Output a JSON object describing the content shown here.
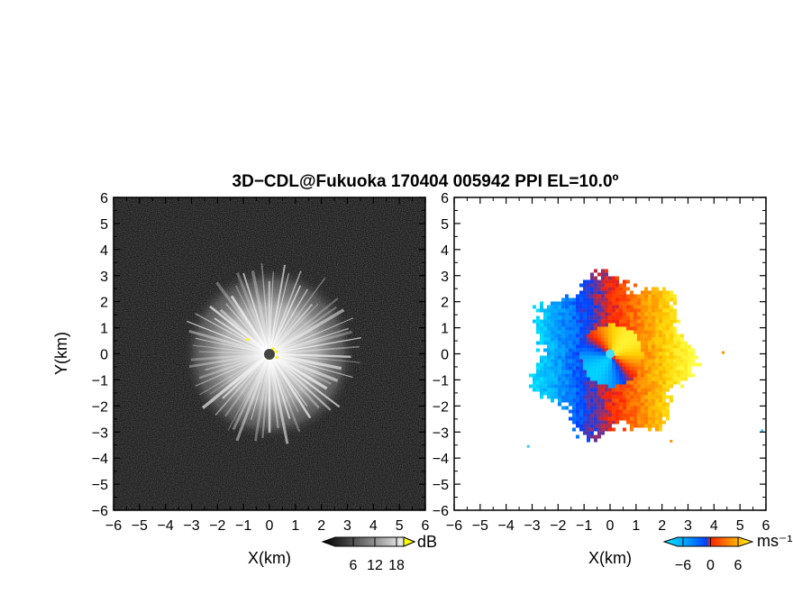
{
  "chart_data": [
    {
      "type": "heatmap",
      "panel": "reflectivity",
      "title": "3D−CDL@Fukuoka 170404 005942 PPI EL=10.0º",
      "xlabel": "X(km)",
      "ylabel": "Y(km)",
      "xlim": [
        -6,
        6
      ],
      "ylim": [
        -6,
        6
      ],
      "x_ticks": [
        "−6",
        "−5",
        "−4",
        "−3",
        "−2",
        "−1",
        "0",
        "1",
        "2",
        "3",
        "4",
        "5",
        "6"
      ],
      "y_ticks": [
        "−6",
        "−5",
        "−4",
        "−3",
        "−2",
        "−1",
        "0",
        "1",
        "2",
        "3",
        "4",
        "5",
        "6"
      ],
      "echo_radius_km": 3.3,
      "colorbar": {
        "unit": "dB",
        "ticks": [
          "6",
          "12",
          "18"
        ],
        "colors": [
          "#000000",
          "#3a3a3a",
          "#777777",
          "#b4b4b4",
          "#eeeeee",
          "#ffff00"
        ]
      }
    },
    {
      "type": "heatmap",
      "panel": "doppler-velocity",
      "xlabel": "X(km)",
      "xlim": [
        -6,
        6
      ],
      "ylim": [
        -6,
        6
      ],
      "x_ticks": [
        "−6",
        "−5",
        "−4",
        "−3",
        "−2",
        "−1",
        "0",
        "1",
        "2",
        "3",
        "4",
        "5",
        "6"
      ],
      "y_ticks": [
        "−6",
        "−5",
        "−4",
        "−3",
        "−2",
        "−1",
        "0",
        "1",
        "2",
        "3",
        "4",
        "5",
        "6"
      ],
      "echo_radius_km": 3.4,
      "colorbar": {
        "unit": "ms⁻¹",
        "ticks": [
          "−6",
          "0",
          "6"
        ],
        "colors": [
          "#00e5ff",
          "#00a0ff",
          "#0040ff",
          "#ff2000",
          "#ff8000",
          "#ffd000",
          "#ffff40"
        ]
      }
    }
  ]
}
